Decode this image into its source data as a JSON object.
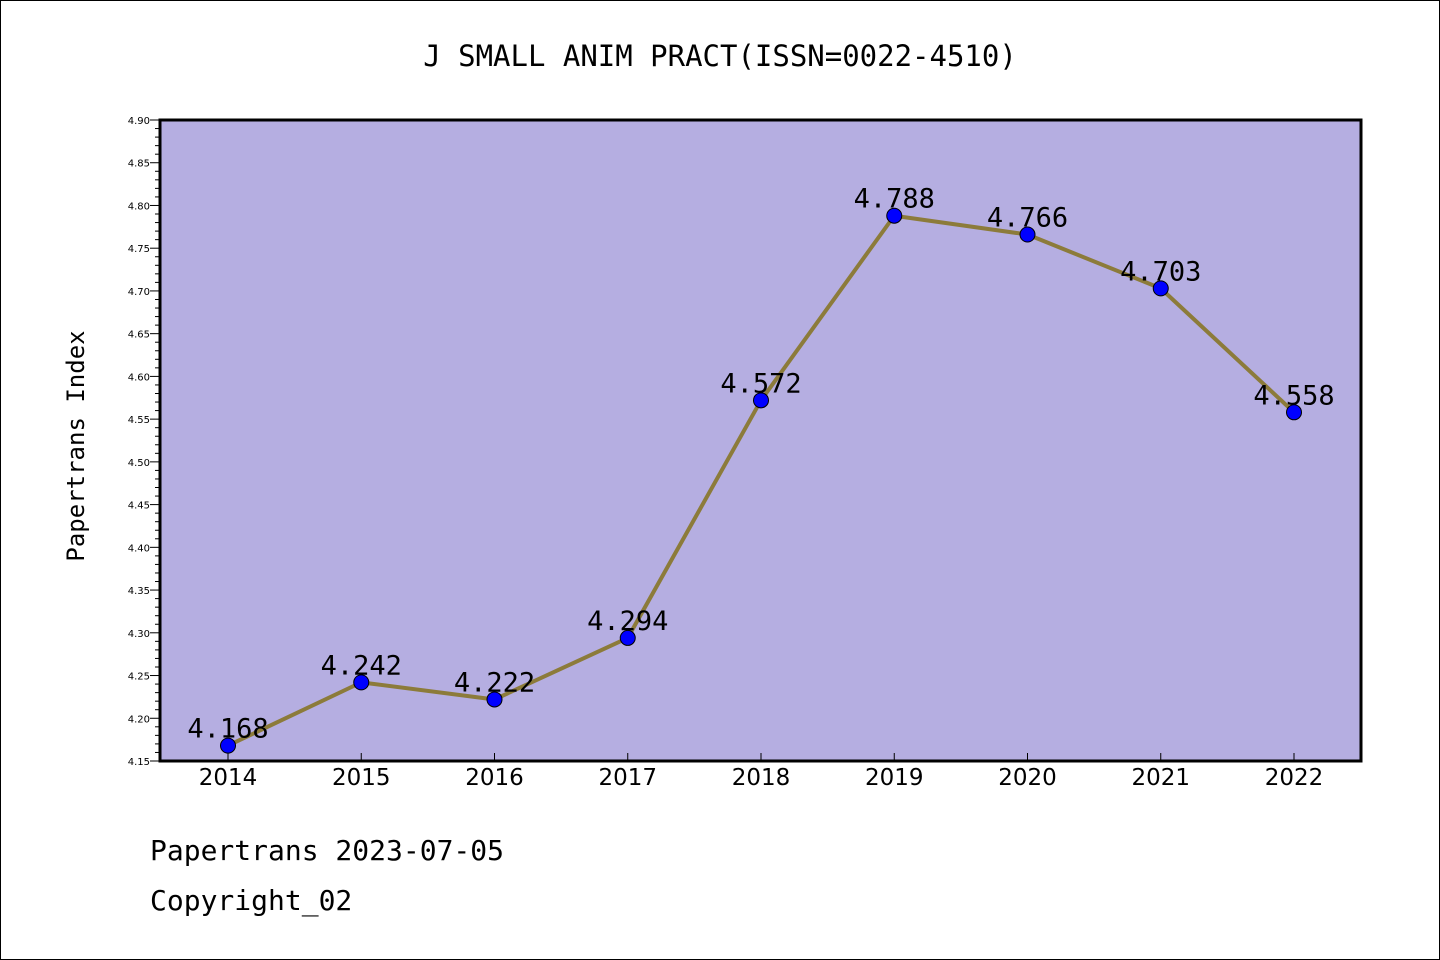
{
  "chart_data": {
    "type": "line",
    "title": "J SMALL ANIM PRACT(ISSN=0022-4510)",
    "xlabel": "",
    "ylabel": "Papertrans Index",
    "categories": [
      "2014",
      "2015",
      "2016",
      "2017",
      "2018",
      "2019",
      "2020",
      "2021",
      "2022"
    ],
    "series": [
      {
        "values": [
          4.168,
          4.242,
          4.222,
          4.294,
          4.572,
          4.788,
          4.766,
          4.703,
          4.558
        ],
        "data_labels": [
          "4.168",
          "4.242",
          "4.222",
          "4.294",
          "4.572",
          "4.788",
          "4.766",
          "4.703",
          "4.558"
        ]
      }
    ],
    "ylim": [
      4.15,
      4.9
    ],
    "yticks": [
      "4.15",
      "4.20",
      "4.25",
      "4.30",
      "4.35",
      "4.40",
      "4.45",
      "4.50",
      "4.55",
      "4.60",
      "4.65",
      "4.70",
      "4.75",
      "4.80",
      "4.85",
      "4.90"
    ],
    "grid": false,
    "legend": "none",
    "colors": {
      "plot_background": "#b5aee1",
      "line": "#8c7b3a",
      "marker": "#0000ff"
    }
  },
  "footer": {
    "line1": "Papertrans 2023-07-05",
    "line2": "Copyright_02"
  }
}
